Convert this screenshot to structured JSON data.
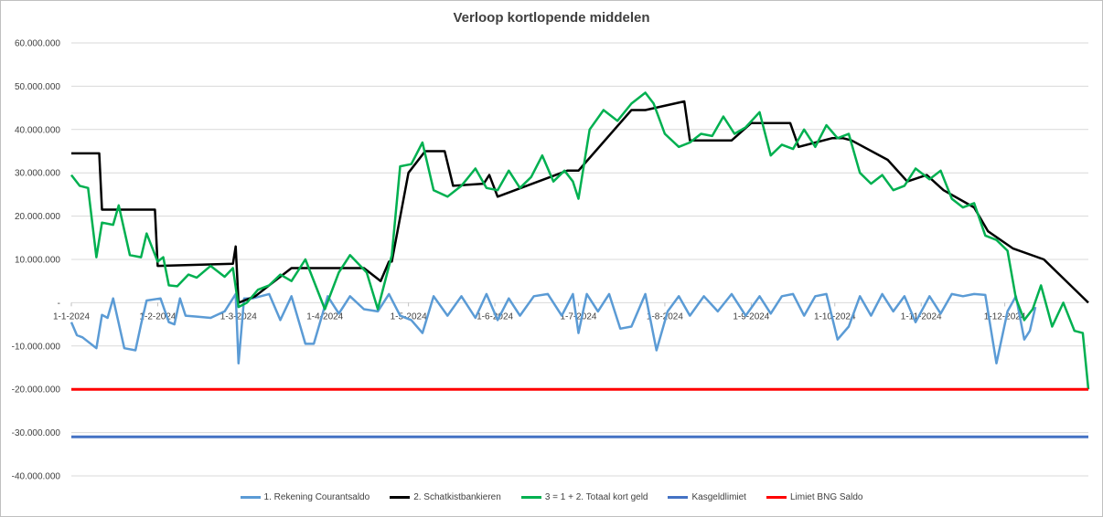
{
  "chart_data": {
    "type": "line",
    "title": "Verloop kortlopende middelen",
    "ylim": [
      -40000000,
      60000000
    ],
    "y_ticks": [
      {
        "value": 60000000,
        "label": "60.000.000"
      },
      {
        "value": 50000000,
        "label": "50.000.000"
      },
      {
        "value": 40000000,
        "label": "40.000.000"
      },
      {
        "value": 30000000,
        "label": "30.000.000"
      },
      {
        "value": 20000000,
        "label": "20.000.000"
      },
      {
        "value": 10000000,
        "label": "10.000.000"
      },
      {
        "value": 0,
        "label": "-"
      },
      {
        "value": -10000000,
        "label": "-10.000.000"
      },
      {
        "value": -20000000,
        "label": "-20.000.000"
      },
      {
        "value": -30000000,
        "label": "-30.000.000"
      },
      {
        "value": -40000000,
        "label": "-40.000.000"
      }
    ],
    "x_range": [
      "2024-01-01",
      "2024-12-31"
    ],
    "x_ticks": [
      {
        "date": "2024-01-01",
        "label": "1-1-2024"
      },
      {
        "date": "2024-02-01",
        "label": "1-2-2024"
      },
      {
        "date": "2024-03-01",
        "label": "1-3-2024"
      },
      {
        "date": "2024-04-01",
        "label": "1-4-2024"
      },
      {
        "date": "2024-05-01",
        "label": "1-5-2024"
      },
      {
        "date": "2024-06-01",
        "label": "1-6-2024"
      },
      {
        "date": "2024-07-01",
        "label": "1-7-2024"
      },
      {
        "date": "2024-08-01",
        "label": "1-8-2024"
      },
      {
        "date": "2024-09-01",
        "label": "1-9-2024"
      },
      {
        "date": "2024-10-01",
        "label": "1-10-2024"
      },
      {
        "date": "2024-11-01",
        "label": "1-11-2024"
      },
      {
        "date": "2024-12-01",
        "label": "1-12-2024"
      }
    ],
    "grid": true,
    "legend": "bottom",
    "series": [
      {
        "name": "1. Rekening Courantsaldo",
        "color": "#5b9bd5",
        "x": [
          "2024-01-01",
          "2024-01-03",
          "2024-01-05",
          "2024-01-10",
          "2024-01-12",
          "2024-01-14",
          "2024-01-16",
          "2024-01-20",
          "2024-01-24",
          "2024-01-26",
          "2024-01-28",
          "2024-02-02",
          "2024-02-05",
          "2024-02-07",
          "2024-02-09",
          "2024-02-11",
          "2024-02-15",
          "2024-02-20",
          "2024-02-25",
          "2024-02-29",
          "2024-03-01",
          "2024-03-03",
          "2024-03-06",
          "2024-03-12",
          "2024-03-16",
          "2024-03-20",
          "2024-03-25",
          "2024-03-28",
          "2024-04-02",
          "2024-04-06",
          "2024-04-10",
          "2024-04-15",
          "2024-04-20",
          "2024-04-24",
          "2024-04-28",
          "2024-05-02",
          "2024-05-06",
          "2024-05-10",
          "2024-05-15",
          "2024-05-20",
          "2024-05-25",
          "2024-05-29",
          "2024-06-02",
          "2024-06-06",
          "2024-06-10",
          "2024-06-15",
          "2024-06-20",
          "2024-06-25",
          "2024-06-29",
          "2024-07-01",
          "2024-07-04",
          "2024-07-08",
          "2024-07-12",
          "2024-07-16",
          "2024-07-20",
          "2024-07-25",
          "2024-07-29",
          "2024-08-02",
          "2024-08-06",
          "2024-08-10",
          "2024-08-15",
          "2024-08-20",
          "2024-08-25",
          "2024-08-30",
          "2024-09-04",
          "2024-09-08",
          "2024-09-12",
          "2024-09-16",
          "2024-09-20",
          "2024-09-24",
          "2024-09-28",
          "2024-10-02",
          "2024-10-06",
          "2024-10-10",
          "2024-10-14",
          "2024-10-18",
          "2024-10-22",
          "2024-10-26",
          "2024-10-30",
          "2024-11-04",
          "2024-11-08",
          "2024-11-12",
          "2024-11-16",
          "2024-11-20",
          "2024-11-24",
          "2024-11-28",
          "2024-12-02",
          "2024-12-05",
          "2024-12-08",
          "2024-12-10",
          "2024-12-12"
        ],
        "values": [
          -4500000,
          -7500000,
          -8000000,
          -10500000,
          -2800000,
          -3500000,
          1000000,
          -10500000,
          -11000000,
          -5000000,
          500000,
          1000000,
          -4500000,
          -5000000,
          1000000,
          -3000000,
          -3200000,
          -3500000,
          -2000000,
          2000000,
          -14000000,
          1000000,
          1000000,
          2000000,
          -4000000,
          1500000,
          -9500000,
          -9500000,
          1500000,
          -2500000,
          1500000,
          -1500000,
          -2000000,
          2000000,
          -3000000,
          -4000000,
          -7000000,
          1500000,
          -3000000,
          1500000,
          -3500000,
          2000000,
          -4000000,
          1000000,
          -3000000,
          1500000,
          2000000,
          -3000000,
          2000000,
          -7000000,
          2000000,
          -2000000,
          2000000,
          -6000000,
          -5500000,
          2000000,
          -11000000,
          -2000000,
          1500000,
          -3000000,
          1500000,
          -2000000,
          2000000,
          -3000000,
          1500000,
          -2500000,
          1500000,
          2000000,
          -3000000,
          1500000,
          2000000,
          -8500000,
          -5500000,
          1500000,
          -3000000,
          2000000,
          -2000000,
          1500000,
          -4500000,
          1500000,
          -2500000,
          2000000,
          1500000,
          2000000,
          1800000,
          -14000000,
          -2000000,
          1500000,
          -8500000,
          -6500000,
          -1000000
        ]
      },
      {
        "name": "2. Schatkistbankieren",
        "color": "#000000",
        "x": [
          "2024-01-01",
          "2024-01-11",
          "2024-01-12",
          "2024-01-31",
          "2024-02-01",
          "2024-02-28",
          "2024-02-29",
          "2024-03-01",
          "2024-03-07",
          "2024-03-14",
          "2024-03-20",
          "2024-04-15",
          "2024-04-21",
          "2024-04-24",
          "2024-04-25",
          "2024-05-01",
          "2024-05-07",
          "2024-05-14",
          "2024-05-17",
          "2024-05-28",
          "2024-05-30",
          "2024-06-02",
          "2024-06-27",
          "2024-06-30",
          "2024-07-01",
          "2024-07-20",
          "2024-07-25",
          "2024-08-08",
          "2024-08-10",
          "2024-08-25",
          "2024-09-01",
          "2024-09-04",
          "2024-09-15",
          "2024-09-18",
          "2024-09-30",
          "2024-10-04",
          "2024-10-07",
          "2024-10-20",
          "2024-10-27",
          "2024-11-03",
          "2024-11-09",
          "2024-11-20",
          "2024-11-25",
          "2024-12-04",
          "2024-12-15",
          "2024-12-31"
        ],
        "values": [
          34500000,
          34500000,
          21500000,
          21500000,
          8500000,
          9000000,
          13000000,
          0,
          1500000,
          5000000,
          8000000,
          8000000,
          5000000,
          9500000,
          9500000,
          30000000,
          35000000,
          35000000,
          27000000,
          27500000,
          29500000,
          24500000,
          30500000,
          30500000,
          30500000,
          44500000,
          44500000,
          46500000,
          37500000,
          37500000,
          41500000,
          41500000,
          41500000,
          36000000,
          38000000,
          38000000,
          37500000,
          33000000,
          28000000,
          29500000,
          26000000,
          22000000,
          16500000,
          12500000,
          10000000,
          0
        ]
      },
      {
        "name": "3 = 1 + 2. Totaal kort geld",
        "color": "#00b050",
        "x": [
          "2024-01-01",
          "2024-01-04",
          "2024-01-07",
          "2024-01-10",
          "2024-01-12",
          "2024-01-16",
          "2024-01-18",
          "2024-01-22",
          "2024-01-26",
          "2024-01-28",
          "2024-02-01",
          "2024-02-03",
          "2024-02-05",
          "2024-02-08",
          "2024-02-12",
          "2024-02-15",
          "2024-02-20",
          "2024-02-25",
          "2024-02-28",
          "2024-03-01",
          "2024-03-04",
          "2024-03-08",
          "2024-03-12",
          "2024-03-16",
          "2024-03-20",
          "2024-03-25",
          "2024-04-01",
          "2024-04-06",
          "2024-04-10",
          "2024-04-16",
          "2024-04-20",
          "2024-04-25",
          "2024-04-28",
          "2024-05-02",
          "2024-05-06",
          "2024-05-10",
          "2024-05-15",
          "2024-05-20",
          "2024-05-25",
          "2024-05-29",
          "2024-06-02",
          "2024-06-06",
          "2024-06-10",
          "2024-06-14",
          "2024-06-18",
          "2024-06-22",
          "2024-06-26",
          "2024-06-29",
          "2024-07-01",
          "2024-07-05",
          "2024-07-10",
          "2024-07-15",
          "2024-07-20",
          "2024-07-25",
          "2024-07-28",
          "2024-08-01",
          "2024-08-06",
          "2024-08-10",
          "2024-08-14",
          "2024-08-18",
          "2024-08-22",
          "2024-08-26",
          "2024-08-30",
          "2024-09-04",
          "2024-09-08",
          "2024-09-12",
          "2024-09-16",
          "2024-09-20",
          "2024-09-24",
          "2024-09-28",
          "2024-10-02",
          "2024-10-06",
          "2024-10-10",
          "2024-10-14",
          "2024-10-18",
          "2024-10-22",
          "2024-10-26",
          "2024-10-30",
          "2024-11-04",
          "2024-11-08",
          "2024-11-12",
          "2024-11-16",
          "2024-11-20",
          "2024-11-24",
          "2024-11-28",
          "2024-12-02",
          "2024-12-05",
          "2024-12-08",
          "2024-12-11",
          "2024-12-14",
          "2024-12-18",
          "2024-12-22",
          "2024-12-26",
          "2024-12-29",
          "2024-12-31"
        ],
        "values": [
          29500000,
          27000000,
          26500000,
          10500000,
          18500000,
          18000000,
          22500000,
          11000000,
          10500000,
          16000000,
          9500000,
          10500000,
          4000000,
          3800000,
          6500000,
          5800000,
          8500000,
          6000000,
          8000000,
          -1000000,
          0,
          3000000,
          4000000,
          6500000,
          5000000,
          10000000,
          -1500000,
          7000000,
          11000000,
          7000000,
          -1500000,
          11000000,
          31500000,
          32000000,
          37000000,
          26000000,
          24500000,
          27000000,
          31000000,
          26500000,
          26000000,
          30500000,
          26500000,
          29000000,
          34000000,
          28000000,
          30500000,
          28000000,
          24000000,
          40000000,
          44500000,
          42000000,
          46000000,
          48500000,
          46000000,
          39000000,
          36000000,
          37000000,
          39000000,
          38500000,
          43000000,
          39000000,
          40500000,
          44000000,
          34000000,
          36500000,
          35500000,
          40000000,
          36000000,
          41000000,
          38000000,
          39000000,
          30000000,
          27500000,
          29500000,
          26000000,
          27000000,
          31000000,
          28500000,
          30500000,
          24000000,
          22000000,
          23000000,
          15500000,
          14500000,
          12000000,
          1000000,
          -4000000,
          -1500000,
          4000000,
          -5500000,
          0,
          -6500000,
          -7000000,
          -20000000
        ]
      },
      {
        "name": "Kasgeldlimiet",
        "color": "#4472c4",
        "x": [
          "2024-01-01",
          "2024-12-31"
        ],
        "values": [
          -31000000,
          -31000000
        ]
      },
      {
        "name": "Limiet BNG Saldo",
        "color": "#ff0000",
        "x": [
          "2024-01-01",
          "2024-12-31"
        ],
        "values": [
          -20000000,
          -20000000
        ]
      }
    ]
  }
}
